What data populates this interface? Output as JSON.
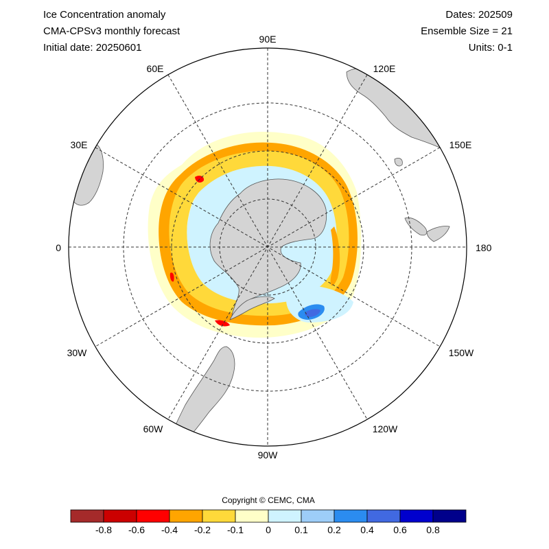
{
  "header": {
    "title": "Ice Concentration anomaly",
    "model": "CMA-CPSv3 monthly forecast",
    "initial_date": "Initial date: 20250601",
    "dates": "Dates: 202509",
    "ensemble": "Ensemble Size = 21",
    "units": "Units: 0-1"
  },
  "map": {
    "projection": "south polar stereographic",
    "longitude_labels": [
      {
        "name": "lon-90e",
        "text": "90E"
      },
      {
        "name": "lon-120e",
        "text": "120E"
      },
      {
        "name": "lon-150e",
        "text": "150E"
      },
      {
        "name": "lon-180",
        "text": "180"
      },
      {
        "name": "lon-150w",
        "text": "150W"
      },
      {
        "name": "lon-120w",
        "text": "120W"
      },
      {
        "name": "lon-90w",
        "text": "90W"
      },
      {
        "name": "lon-60w",
        "text": "60W"
      },
      {
        "name": "lon-30w",
        "text": "30W"
      },
      {
        "name": "lon-0",
        "text": "0"
      },
      {
        "name": "lon-30e",
        "text": "30E"
      },
      {
        "name": "lon-60e",
        "text": "60E"
      }
    ],
    "land_color": "#d4d4d4"
  },
  "copyright": "Copyright © CEMC, CMA",
  "colorbar": {
    "colors": [
      "#a52a2a",
      "#cc0000",
      "#ff0000",
      "#ffa500",
      "#ffd93a",
      "#ffffc8",
      "#cff3ff",
      "#9dcdf8",
      "#2b8cf0",
      "#4169e1",
      "#0000cd",
      "#00008b"
    ],
    "tick_labels": [
      "-0.8",
      "-0.6",
      "-0.4",
      "-0.2",
      "-0.1",
      "0",
      "0.1",
      "0.2",
      "0.4",
      "0.6",
      "0.8"
    ]
  }
}
